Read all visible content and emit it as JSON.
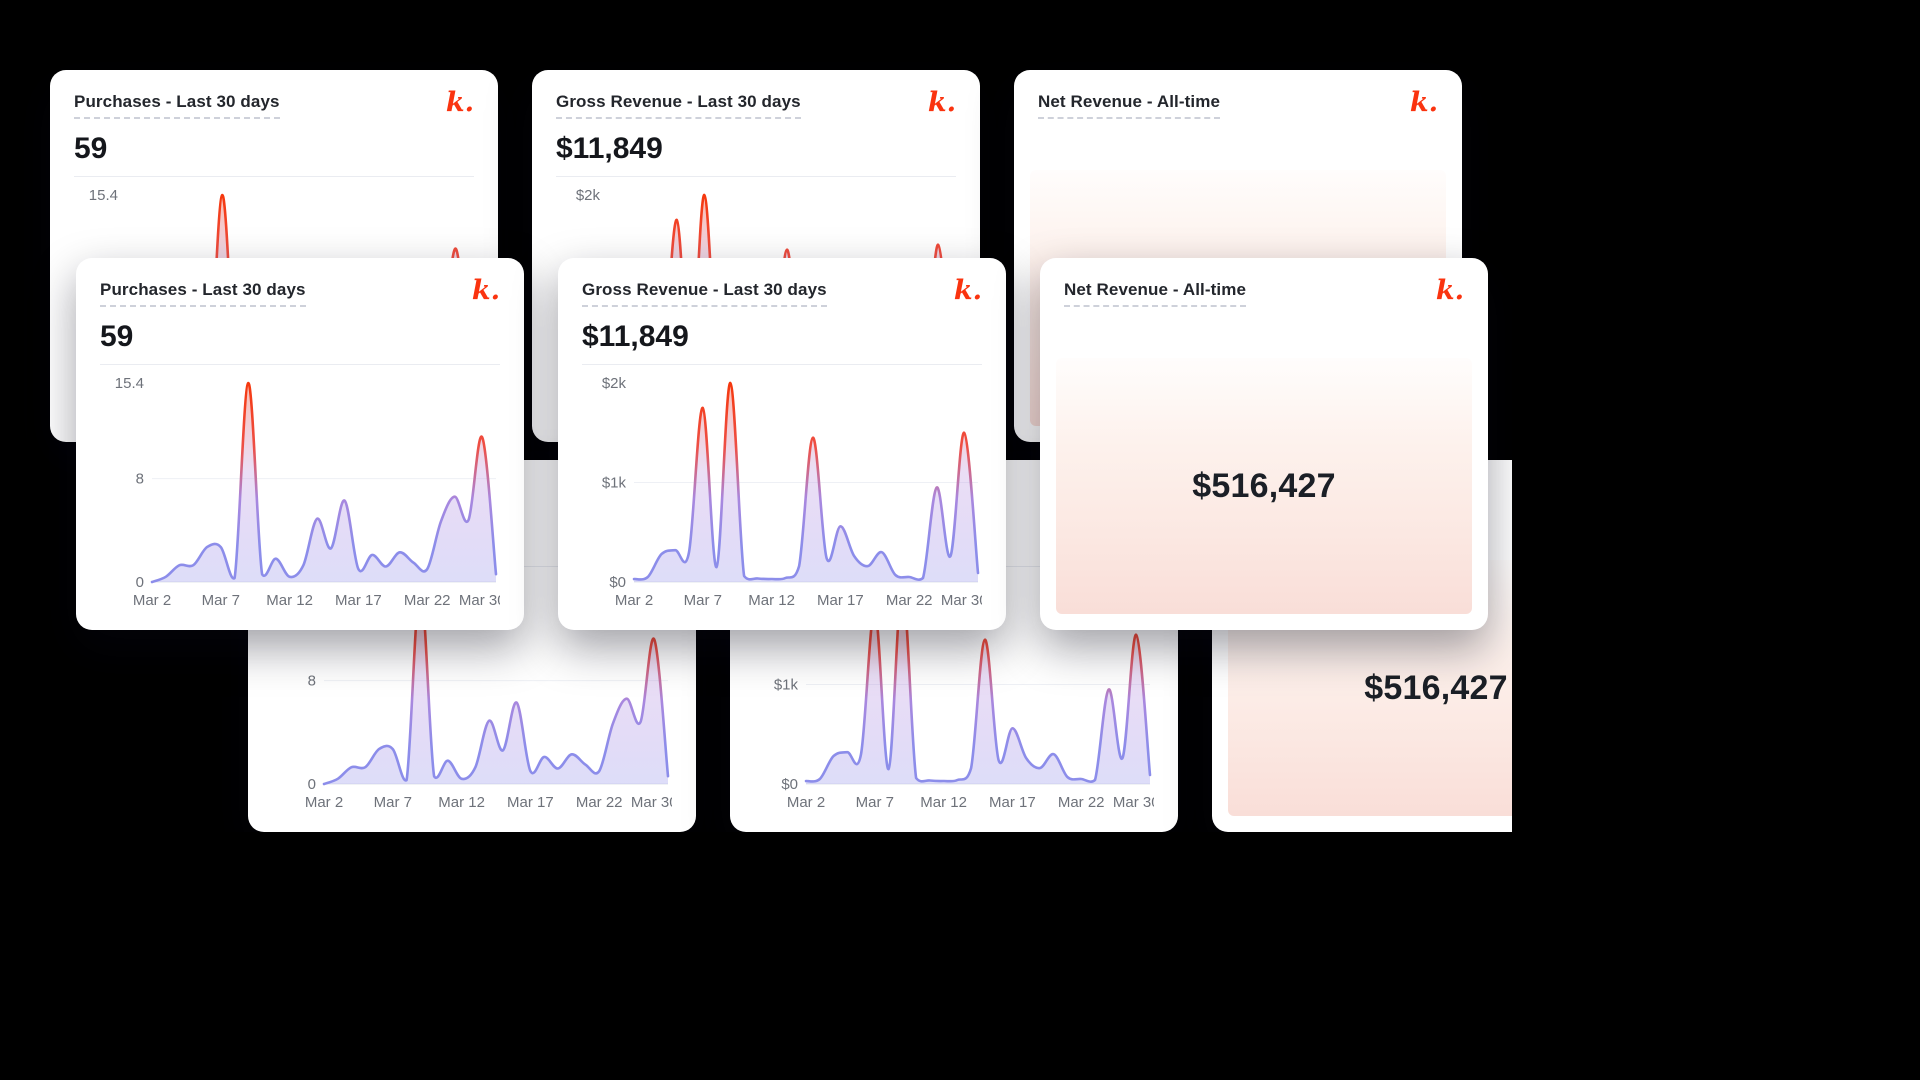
{
  "background": "#000000",
  "logo": {
    "text": "k.",
    "color": "#fa330f",
    "name": "kit-logo"
  },
  "cards": {
    "purchases": {
      "title": "Purchases - Last 30 days",
      "value": "59"
    },
    "gross_revenue": {
      "title": "Gross Revenue - Last 30 days",
      "value": "$11,849"
    },
    "net_revenue": {
      "title": "Net Revenue - All-time",
      "value": "$516,427",
      "gradient": [
        "#fffdfc",
        "#fdf1ec",
        "#fbe7e1",
        "#f9ded8"
      ]
    }
  },
  "chart_data": [
    {
      "id": "purchases",
      "type": "area",
      "title": "Purchases - Last 30 days",
      "total": 59,
      "x_range": "Mar 2 - Mar 31",
      "values": [
        0,
        0.4,
        1.3,
        1.3,
        2.7,
        2.7,
        0.3,
        15.4,
        0.6,
        1.8,
        0.4,
        1.3,
        4.9,
        2.6,
        6.3,
        1.0,
        2.1,
        1.2,
        2.3,
        1.5,
        1.0,
        4.7,
        6.6,
        4.8,
        11.2,
        0.6
      ],
      "ylim": [
        0,
        15.4
      ],
      "yticks": [
        {
          "value": 15.4,
          "label": "15.4",
          "line": false
        },
        {
          "value": 8,
          "label": "8",
          "line": true
        },
        {
          "value": 0,
          "label": "0",
          "line": true
        }
      ],
      "xticks": [
        {
          "index": 0,
          "label": "Mar 2"
        },
        {
          "index": 5,
          "label": "Mar 7"
        },
        {
          "index": 10,
          "label": "Mar 12"
        },
        {
          "index": 15,
          "label": "Mar 17"
        },
        {
          "index": 20,
          "label": "Mar 22"
        },
        {
          "index": 24,
          "label": "Mar 30"
        }
      ],
      "line_gradient": [
        {
          "offset": "0%",
          "color": "#f5380e"
        },
        {
          "offset": "32%",
          "color": "#ee4f45"
        },
        {
          "offset": "58%",
          "color": "#a987de"
        },
        {
          "offset": "82%",
          "color": "#8c8dea"
        },
        {
          "offset": "100%",
          "color": "#8c8dea"
        }
      ],
      "fill_gradient": [
        {
          "offset": "0%",
          "color": "#f6593a",
          "opacity": "0.40"
        },
        {
          "offset": "45%",
          "color": "#bb93e2",
          "opacity": "0.30"
        },
        {
          "offset": "100%",
          "color": "#b9b9f2",
          "opacity": "0.48"
        }
      ]
    },
    {
      "id": "gross-revenue",
      "type": "area",
      "title": "Gross Revenue - Last 30 days",
      "total": "$11,849",
      "x_range": "Mar 2 - Mar 31",
      "values": [
        30,
        50,
        280,
        320,
        300,
        1750,
        150,
        2000,
        60,
        35,
        30,
        40,
        160,
        1450,
        240,
        560,
        260,
        160,
        300,
        70,
        50,
        40,
        950,
        260,
        1500,
        90
      ],
      "ylim": [
        0,
        2000
      ],
      "yticks": [
        {
          "value": 2000,
          "label": "$2k",
          "line": false
        },
        {
          "value": 1000,
          "label": "$1k",
          "line": true
        },
        {
          "value": 0,
          "label": "$0",
          "line": true
        }
      ],
      "xticks": [
        {
          "index": 0,
          "label": "Mar 2"
        },
        {
          "index": 5,
          "label": "Mar 7"
        },
        {
          "index": 10,
          "label": "Mar 12"
        },
        {
          "index": 15,
          "label": "Mar 17"
        },
        {
          "index": 20,
          "label": "Mar 22"
        },
        {
          "index": 24,
          "label": "Mar 30"
        }
      ],
      "line_gradient": [
        {
          "offset": "0%",
          "color": "#f5380e"
        },
        {
          "offset": "32%",
          "color": "#ee4f45"
        },
        {
          "offset": "58%",
          "color": "#a987de"
        },
        {
          "offset": "82%",
          "color": "#8c8dea"
        },
        {
          "offset": "100%",
          "color": "#8c8dea"
        }
      ],
      "fill_gradient": [
        {
          "offset": "0%",
          "color": "#f6593a",
          "opacity": "0.40"
        },
        {
          "offset": "45%",
          "color": "#bb93e2",
          "opacity": "0.30"
        },
        {
          "offset": "100%",
          "color": "#b9b9f2",
          "opacity": "0.48"
        }
      ]
    }
  ]
}
